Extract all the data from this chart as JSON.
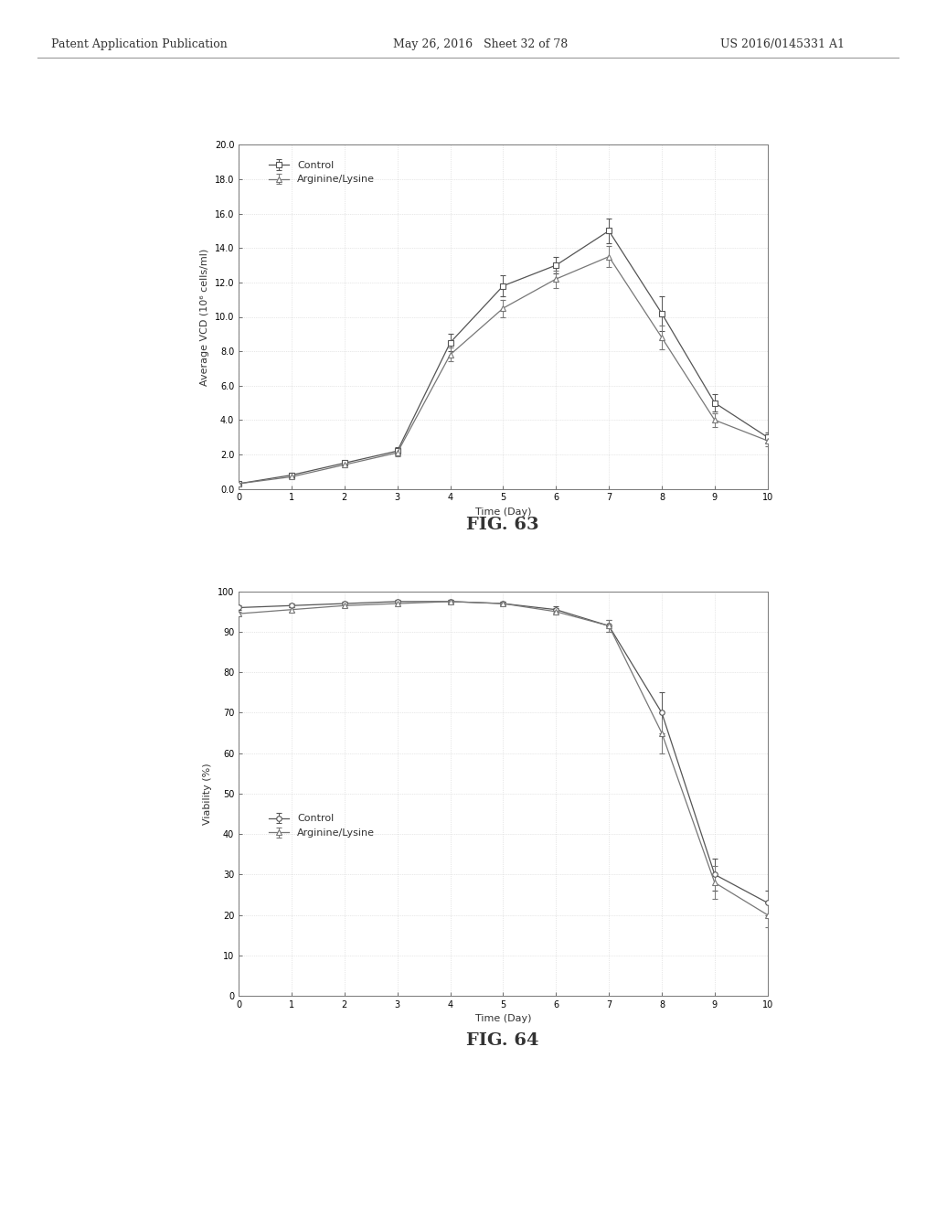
{
  "fig63": {
    "title": "FIG. 63",
    "xlabel": "Time (Day)",
    "ylabel": "Average VCD (10⁶ cells/ml)",
    "xlim": [
      0,
      10
    ],
    "ylim": [
      0.0,
      20.0
    ],
    "yticks": [
      0.0,
      2.0,
      4.0,
      6.0,
      8.0,
      10.0,
      12.0,
      14.0,
      16.0,
      18.0,
      20.0
    ],
    "yticklabels": [
      "0.0",
      "2.0",
      "4.0",
      "6.0",
      "8.0",
      "10.0",
      "12.0",
      "14.0",
      "16.0",
      "18.0",
      "20.0"
    ],
    "xticks": [
      0,
      1,
      2,
      3,
      4,
      5,
      6,
      7,
      8,
      9,
      10
    ],
    "control": {
      "x": [
        0,
        1,
        2,
        3,
        4,
        5,
        6,
        7,
        8,
        9,
        10
      ],
      "y": [
        0.3,
        0.8,
        1.5,
        2.2,
        8.5,
        11.8,
        13.0,
        15.0,
        10.2,
        5.0,
        3.0
      ],
      "yerr": [
        0.1,
        0.15,
        0.15,
        0.2,
        0.5,
        0.6,
        0.5,
        0.7,
        1.0,
        0.5,
        0.3
      ],
      "label": "Control",
      "marker": "s",
      "color": "#555555"
    },
    "arginine": {
      "x": [
        0,
        1,
        2,
        3,
        4,
        5,
        6,
        7,
        8,
        9,
        10
      ],
      "y": [
        0.3,
        0.7,
        1.4,
        2.1,
        7.8,
        10.5,
        12.2,
        13.5,
        8.8,
        4.0,
        2.8
      ],
      "yerr": [
        0.1,
        0.1,
        0.15,
        0.2,
        0.4,
        0.5,
        0.5,
        0.6,
        0.7,
        0.4,
        0.3
      ],
      "label": "Arginine/Lysine",
      "marker": "^",
      "color": "#777777"
    }
  },
  "fig64": {
    "title": "FIG. 64",
    "xlabel": "Time (Day)",
    "ylabel": "Viability (%)",
    "xlim": [
      0,
      10
    ],
    "ylim": [
      0,
      100
    ],
    "yticks": [
      0,
      10,
      20,
      30,
      40,
      50,
      60,
      70,
      80,
      90,
      100
    ],
    "yticklabels": [
      "0",
      "10",
      "20",
      "30",
      "40",
      "50",
      "60",
      "70",
      "80",
      "90",
      "100"
    ],
    "xticks": [
      0,
      1,
      2,
      3,
      4,
      5,
      6,
      7,
      8,
      9,
      10
    ],
    "control": {
      "x": [
        0,
        1,
        2,
        3,
        4,
        5,
        6,
        7,
        8,
        9,
        10
      ],
      "y": [
        96.0,
        96.5,
        97.0,
        97.5,
        97.5,
        97.0,
        95.5,
        91.5,
        70.0,
        30.0,
        23.0
      ],
      "yerr": [
        0.5,
        0.5,
        0.5,
        0.5,
        0.5,
        0.5,
        0.8,
        1.5,
        5.0,
        4.0,
        3.0
      ],
      "label": "Control",
      "marker": "o",
      "color": "#555555"
    },
    "arginine": {
      "x": [
        0,
        1,
        2,
        3,
        4,
        5,
        6,
        7,
        8,
        9,
        10
      ],
      "y": [
        94.5,
        95.5,
        96.5,
        97.0,
        97.5,
        97.0,
        95.0,
        91.5,
        65.0,
        28.0,
        20.0
      ],
      "yerr": [
        0.5,
        0.5,
        0.5,
        0.5,
        0.5,
        0.5,
        0.8,
        1.5,
        5.0,
        4.0,
        3.0
      ],
      "label": "Arginine/Lysine",
      "marker": "^",
      "color": "#777777"
    }
  },
  "bg_color": "#ffffff",
  "plot_bg": "#ffffff",
  "header_left": "Patent Application Publication",
  "header_mid": "May 26, 2016   Sheet 32 of 78",
  "header_right": "US 2016/0145331 A1",
  "header_fontsize": 9,
  "label_fontsize": 8,
  "tick_fontsize": 7,
  "legend_fontsize": 8,
  "fig_caption_fontsize": 14
}
